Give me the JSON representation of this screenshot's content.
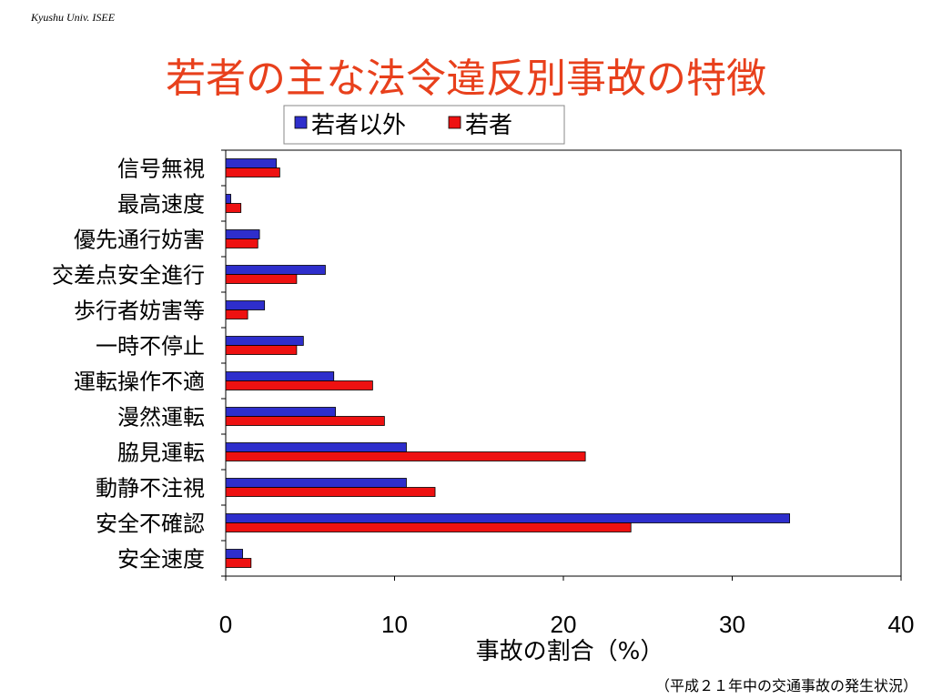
{
  "header_tag": "Kyushu Univ. ISEE",
  "title": "若者の主な法令違反別事故の特徴",
  "footnote": "（平成２１年中の交通事故の発生状況）",
  "colors": {
    "title": "#e8401c",
    "non_young": "#2e2ecc",
    "young": "#ee1111"
  },
  "chart_data": {
    "type": "bar",
    "orientation": "horizontal",
    "categories": [
      "信号無視",
      "最高速度",
      "優先通行妨害",
      "交差点安全進行",
      "歩行者妨害等",
      "一時不停止",
      "運転操作不適",
      "漫然運転",
      "脇見運転",
      "動静不注視",
      "安全不確認",
      "安全速度"
    ],
    "series": [
      {
        "name": "若者以外",
        "color": "#2e2ecc",
        "values": [
          3.0,
          0.3,
          2.0,
          5.9,
          2.3,
          4.6,
          6.4,
          6.5,
          10.7,
          10.7,
          33.4,
          1.0
        ]
      },
      {
        "name": "若者",
        "color": "#ee1111",
        "values": [
          3.2,
          0.9,
          1.9,
          4.2,
          1.3,
          4.2,
          8.7,
          9.4,
          21.3,
          12.4,
          24.0,
          1.5
        ]
      }
    ],
    "xlabel": "事故の割合（%）",
    "ylabel": "",
    "xlim": [
      0,
      40
    ],
    "xticks": [
      "0",
      "10",
      "20",
      "30",
      "40"
    ],
    "grid": false,
    "legend_position": "top"
  }
}
